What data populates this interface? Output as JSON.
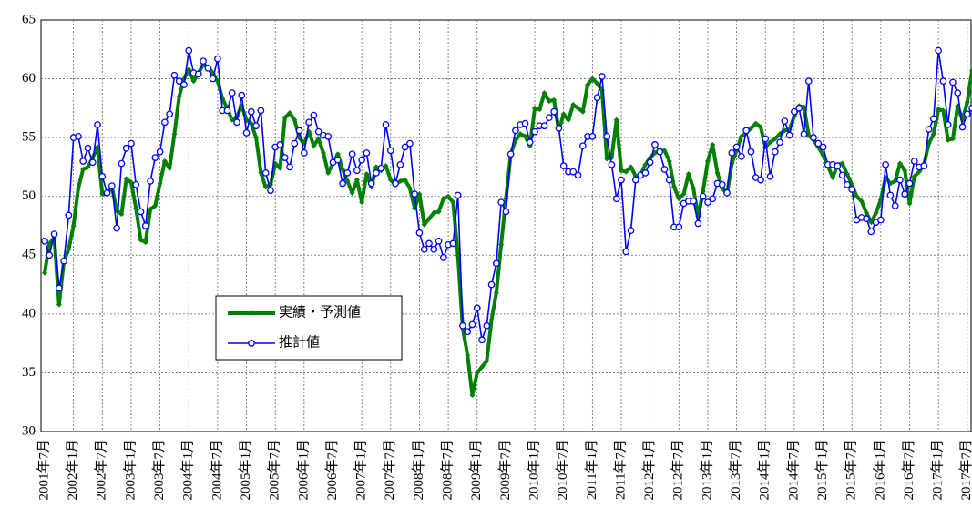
{
  "chart_data": {
    "type": "line",
    "categories": [
      "2001年7月",
      null,
      null,
      null,
      null,
      null,
      "2002年1月",
      null,
      null,
      null,
      null,
      null,
      "2002年7月",
      null,
      null,
      null,
      null,
      null,
      "2003年1月",
      null,
      null,
      null,
      null,
      null,
      "2003年7月",
      null,
      null,
      null,
      null,
      null,
      "2004年1月",
      null,
      null,
      null,
      null,
      null,
      "2004年7月",
      null,
      null,
      null,
      null,
      null,
      "2005年1月",
      null,
      null,
      null,
      null,
      null,
      "2005年7月",
      null,
      null,
      null,
      null,
      null,
      "2006年1月",
      null,
      null,
      null,
      null,
      null,
      "2006年7月",
      null,
      null,
      null,
      null,
      null,
      "2007年1月",
      null,
      null,
      null,
      null,
      null,
      "2007年7月",
      null,
      null,
      null,
      null,
      null,
      "2008年1月",
      null,
      null,
      null,
      null,
      null,
      "2008年7月",
      null,
      null,
      null,
      null,
      null,
      "2009年1月",
      null,
      null,
      null,
      null,
      null,
      "2009年7月",
      null,
      null,
      null,
      null,
      null,
      "2010年1月",
      null,
      null,
      null,
      null,
      null,
      "2010年7月",
      null,
      null,
      null,
      null,
      null,
      "2011年1月",
      null,
      null,
      null,
      null,
      null,
      "2011年7月",
      null,
      null,
      null,
      null,
      null,
      "2012年1月",
      null,
      null,
      null,
      null,
      null,
      "2012年7月",
      null,
      null,
      null,
      null,
      null,
      "2013年1月",
      null,
      null,
      null,
      null,
      null,
      "2013年7月",
      null,
      null,
      null,
      null,
      null,
      "2014年1月",
      null,
      null,
      null,
      null,
      null,
      "2014年7月",
      null,
      null,
      null,
      null,
      null,
      "2015年1月",
      null,
      null,
      null,
      null,
      null,
      "2015年7月",
      null,
      null,
      null,
      null,
      null,
      "2016年1月",
      null,
      null,
      null,
      null,
      null,
      "2016年7月",
      null,
      null,
      null,
      null,
      null,
      "2017年1月",
      null,
      null,
      null,
      null,
      null,
      "2017年7月",
      null
    ],
    "series": [
      {
        "name": "実績・予測値",
        "color": "#008000",
        "values": [
          43.5,
          46.0,
          46.5,
          40.8,
          44.5,
          45.5,
          47.5,
          50.7,
          52.3,
          52.5,
          53.3,
          54.2,
          50.2,
          50.2,
          50.8,
          48.8,
          48.5,
          51.5,
          51.2,
          49.0,
          46.3,
          46.1,
          48.9,
          49.2,
          51.1,
          53.0,
          52.4,
          55.3,
          58.5,
          60.0,
          60.8,
          59.8,
          60.5,
          61.2,
          61.0,
          60.5,
          59.8,
          58.3,
          57.5,
          56.5,
          56.8,
          57.7,
          56.5,
          56.2,
          55.0,
          52.0,
          50.8,
          51.0,
          52.8,
          52.4,
          56.7,
          57.1,
          56.5,
          55.0,
          54.5,
          55.5,
          54.3,
          54.9,
          53.7,
          52.0,
          52.8,
          53.6,
          52.3,
          51.3,
          50.3,
          51.4,
          49.5,
          51.9,
          50.8,
          52.5,
          52.2,
          52.6,
          51.4,
          51.0,
          51.3,
          51.4,
          50.7,
          49.0,
          50.2,
          47.6,
          48.1,
          48.6,
          48.7,
          49.8,
          50.0,
          49.5,
          45.0,
          38.8,
          36.5,
          33.1,
          35.0,
          35.5,
          36.0,
          39.5,
          41.8,
          45.9,
          49.8,
          53.6,
          54.8,
          55.3,
          55.1,
          54.3,
          57.5,
          57.4,
          58.8,
          58.1,
          58.2,
          55.6,
          57.0,
          56.5,
          57.8,
          57.5,
          57.2,
          59.5,
          60.0,
          59.6,
          59.0,
          53.2,
          53.3,
          56.5,
          52.2,
          52.1,
          52.5,
          51.7,
          51.8,
          52.7,
          53.3,
          53.7,
          53.9,
          53.9,
          53.0,
          50.8,
          49.8,
          50.2,
          51.9,
          50.7,
          48.3,
          50.4,
          53.0,
          54.4,
          52.0,
          50.7,
          50.2,
          52.8,
          53.9,
          55.1,
          55.4,
          55.8,
          56.2,
          55.9,
          54.2,
          54.6,
          54.9,
          55.3,
          55.6,
          55.7,
          56.8,
          57.7,
          57.6,
          55.2,
          54.8,
          54.2,
          53.5,
          52.6,
          51.6,
          52.7,
          52.8,
          51.9,
          51.0,
          50.0,
          49.6,
          48.6,
          47.8,
          48.6,
          49.7,
          51.6,
          51.1,
          51.3,
          52.8,
          52.2,
          49.4,
          51.7,
          52.1,
          52.7,
          54.5,
          55.3,
          57.4,
          57.3,
          54.8,
          54.9,
          57.7,
          56.5,
          58.0,
          60.7
        ]
      },
      {
        "name": "推計値",
        "color": "#0000ff",
        "values": [
          46.2,
          45.0,
          46.8,
          42.2,
          44.5,
          48.4,
          55.0,
          55.1,
          53.0,
          54.1,
          52.9,
          56.1,
          51.7,
          50.3,
          50.9,
          47.3,
          52.8,
          54.1,
          54.5,
          51.0,
          48.7,
          47.5,
          51.3,
          53.3,
          53.8,
          56.3,
          57.0,
          60.3,
          59.8,
          59.5,
          62.4,
          60.5,
          60.4,
          61.5,
          60.9,
          60.0,
          61.7,
          57.3,
          57.3,
          58.8,
          56.3,
          58.6,
          55.4,
          57.2,
          56.0,
          57.3,
          52.0,
          50.5,
          54.2,
          54.4,
          53.3,
          52.5,
          54.5,
          55.6,
          53.7,
          56.3,
          56.9,
          55.5,
          55.2,
          55.1,
          52.9,
          53.1,
          51.1,
          52.0,
          53.6,
          52.2,
          53.1,
          53.7,
          51.1,
          52.0,
          52.4,
          56.1,
          53.9,
          51.1,
          52.7,
          54.2,
          54.5,
          50.2,
          46.9,
          45.5,
          46.0,
          45.5,
          46.2,
          44.8,
          45.9,
          46.0,
          50.1,
          39.0,
          38.5,
          39.1,
          40.5,
          37.8,
          39.0,
          42.5,
          44.3,
          49.5,
          48.7,
          53.6,
          55.6,
          56.1,
          56.2,
          54.6,
          55.5,
          56.0,
          56.0,
          56.7,
          57.2,
          55.8,
          52.6,
          52.1,
          52.1,
          51.8,
          54.3,
          55.1,
          55.1,
          58.4,
          60.2,
          55.1,
          52.7,
          49.8,
          51.4,
          45.3,
          47.1,
          51.4,
          51.8,
          52.0,
          52.9,
          54.4,
          53.8,
          52.3,
          51.4,
          47.4,
          47.4,
          49.4,
          49.6,
          49.6,
          47.7,
          50.0,
          49.5,
          49.8,
          51.1,
          51.0,
          50.3,
          53.7,
          54.2,
          53.4,
          55.6,
          53.8,
          51.6,
          51.4,
          54.9,
          51.7,
          53.8,
          54.6,
          56.4,
          55.2,
          57.2,
          57.5,
          55.3,
          59.8,
          55.0,
          54.5,
          54.2,
          52.7,
          52.7,
          52.6,
          51.8,
          51.0,
          50.6,
          48.0,
          48.2,
          48.1,
          47.0,
          47.8,
          48.0,
          52.7,
          50.1,
          49.2,
          51.4,
          50.2,
          51.1,
          53.0,
          52.5,
          52.6,
          55.7,
          56.6,
          62.4,
          59.8,
          56.1,
          59.7,
          58.8,
          55.9,
          57.0,
          57.5
        ]
      }
    ],
    "ylim": [
      30,
      65
    ],
    "yticks": [
      30,
      35,
      40,
      45,
      50,
      55,
      60,
      65
    ],
    "grid": true
  }
}
